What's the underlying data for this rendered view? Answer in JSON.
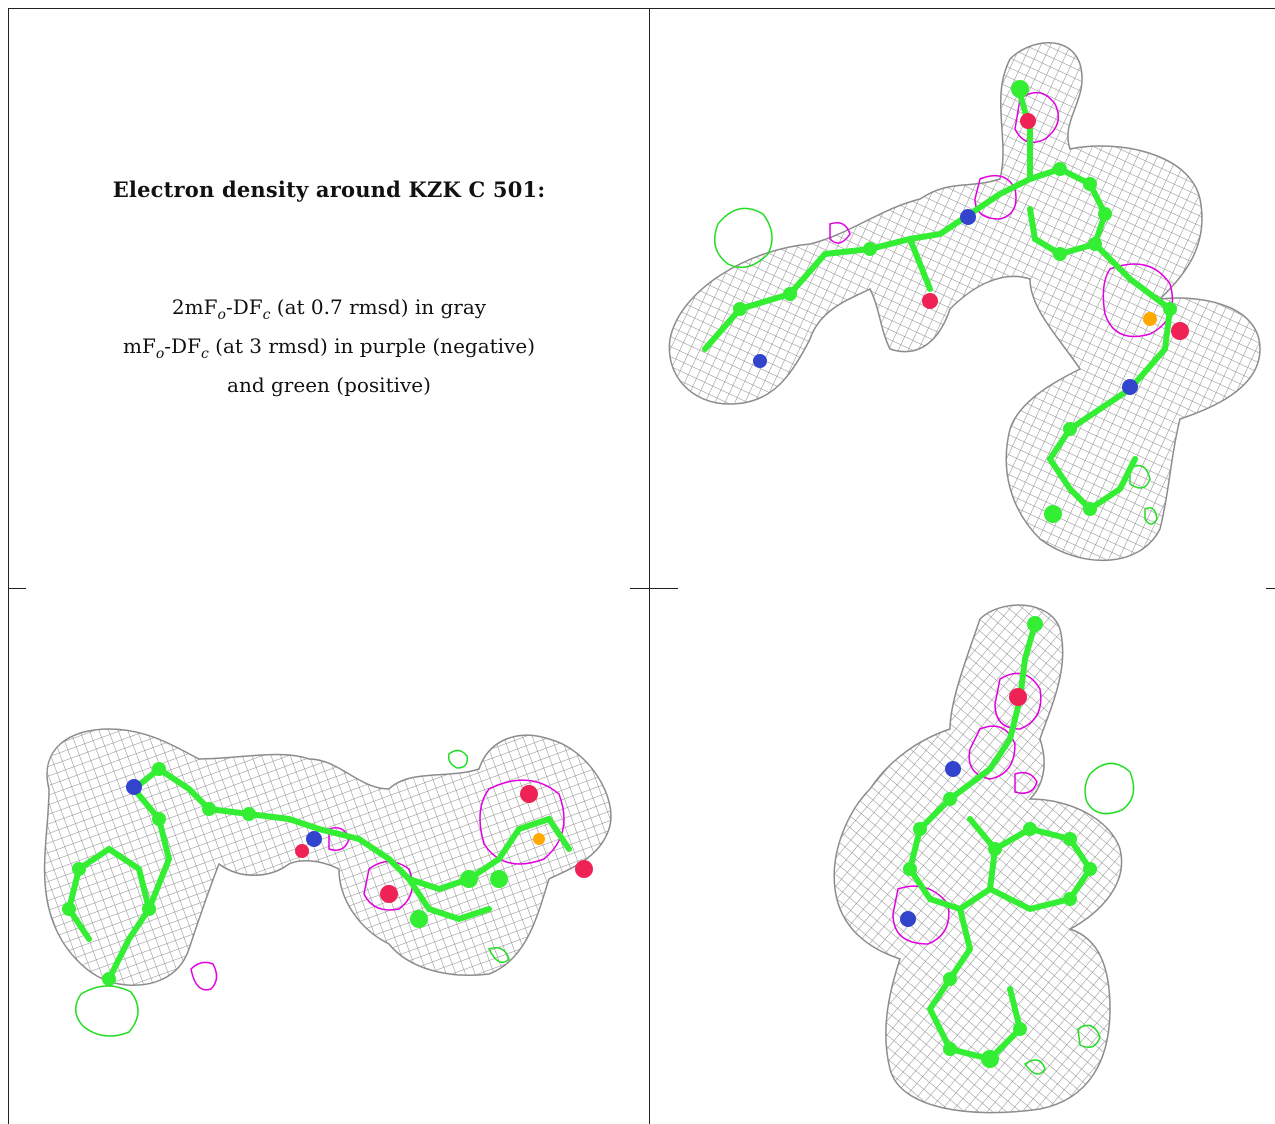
{
  "caption": {
    "title": "Electron density around KZK C 501:",
    "line1_lead": "2mF",
    "line1_sub1": "o",
    "line1_mid": "-DF",
    "line1_sub2": "c",
    "line1_tail": " (at 0.7 rmsd) in gray",
    "line2_lead": "mF",
    "line2_sub1": "o",
    "line2_mid": "-DF",
    "line2_sub2": "c",
    "line2_tail": " (at 3 rmsd) in purple (negative)",
    "line3": "and green (positive)"
  },
  "colors": {
    "density_2fofc": "#8c8c8c",
    "difference_negative": "#e000e0",
    "difference_positive": "#22dd22",
    "carbon": "#33ee33",
    "nitrogen": "#3344cc",
    "oxygen": "#ee2255",
    "sulfur": "#ffaa00"
  },
  "panels": [
    {
      "view": "view-1"
    },
    {
      "view": "view-2"
    },
    {
      "view": "view-3"
    }
  ]
}
